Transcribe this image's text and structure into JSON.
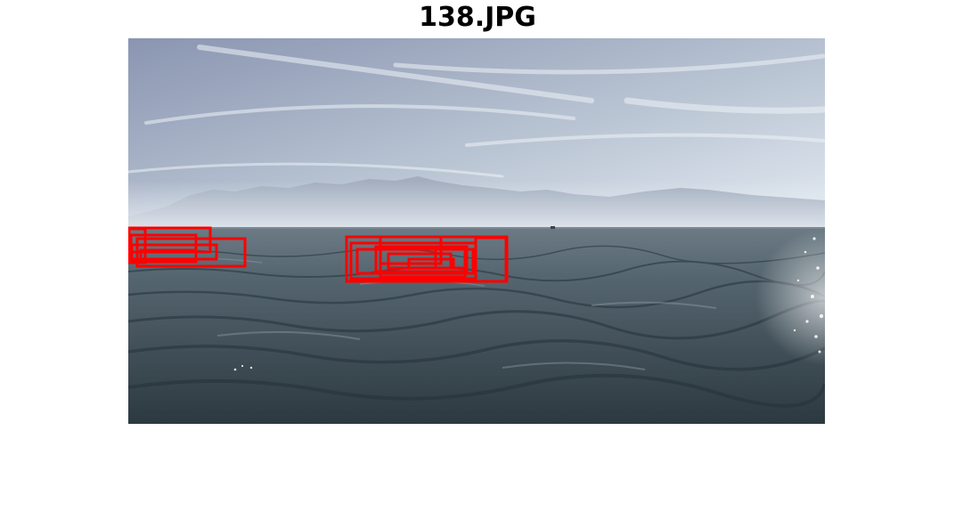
{
  "title": "138.JPG",
  "colors": {
    "sky_top": "#8f9ab6",
    "sky_bottom": "#dfe6ee",
    "mountains": "#a5afbf",
    "sea_top": "#5e6e79",
    "sea_bottom": "#2f3d45",
    "box": "#ff0000"
  },
  "detection_count": 16
}
